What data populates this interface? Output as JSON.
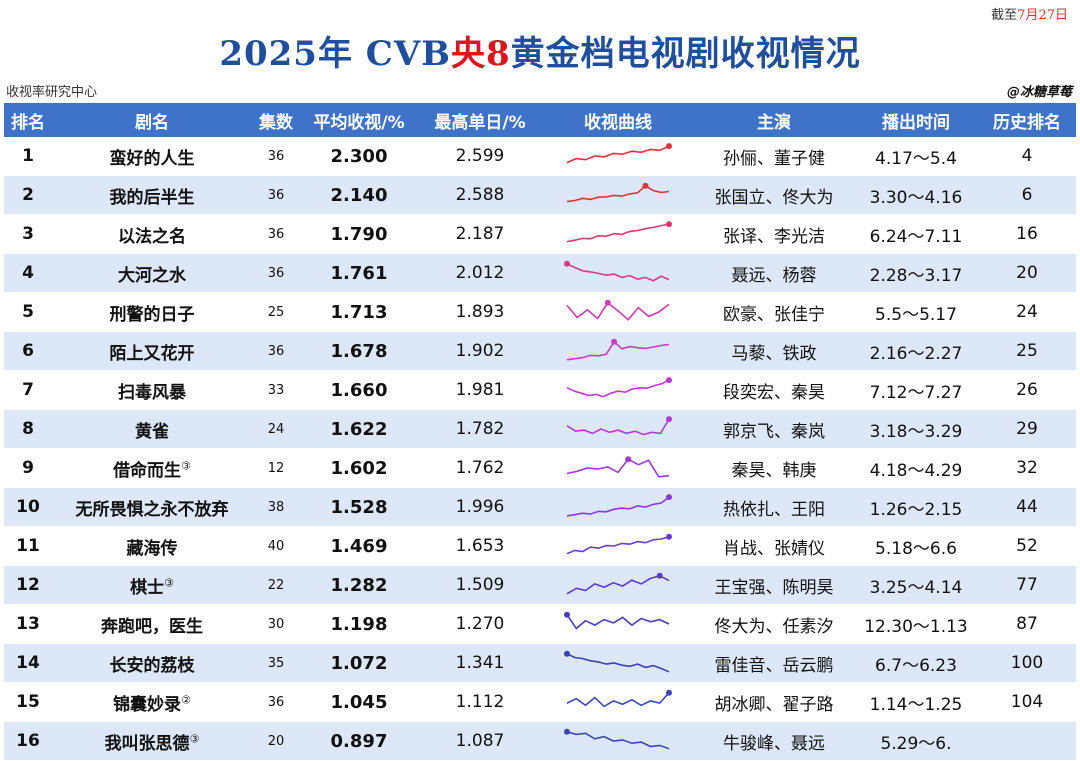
{
  "header": {
    "date_prefix": "截至",
    "date_value": "7月27日",
    "title_pre": "2025年 CVB",
    "title_hl": "央8",
    "title_post": "黄金档电视剧收视情况",
    "source": "收视率研究中心",
    "watermark": "@冰糖草莓"
  },
  "columns": [
    "排名",
    "剧名",
    "集数",
    "平均收视/%",
    "最高单日/%",
    "收视曲线",
    "主演",
    "播出时间",
    "历史排名"
  ],
  "colors": {
    "header_bg": "#3f73c9",
    "title": "#1f4f9c",
    "accent": "#e0141c",
    "row_alt": "#dce8f7"
  },
  "chart_data": {
    "type": "table",
    "title": "2025年 CVB央8黄金档电视剧收视情况",
    "rows": [
      {
        "rank": "1",
        "name": "蛮好的人生",
        "sup": "",
        "episodes": "36",
        "avg": "2.300",
        "peak": "2.599",
        "cast": "孙俪、董子健",
        "airing": "4.17～5.4",
        "history": "4",
        "curve_color": "#e0323c",
        "curve": [
          0.2,
          0.38,
          0.33,
          0.5,
          0.46,
          0.62,
          0.58,
          0.72,
          0.67,
          0.8,
          0.76,
          0.95
        ],
        "peak_idx": 11
      },
      {
        "rank": "2",
        "name": "我的后半生",
        "sup": "",
        "episodes": "36",
        "avg": "2.140",
        "peak": "2.588",
        "cast": "张国立、佟大为",
        "airing": "3.30～4.16",
        "history": "6",
        "curve_color": "#e0323c",
        "curve": [
          0.2,
          0.25,
          0.35,
          0.3,
          0.4,
          0.42,
          0.48,
          0.45,
          0.55,
          0.6,
          0.92,
          0.7,
          0.62,
          0.66
        ],
        "peak_idx": 10
      },
      {
        "rank": "3",
        "name": "以法之名",
        "sup": "",
        "episodes": "36",
        "avg": "1.790",
        "peak": "2.187",
        "cast": "张译、李光洁",
        "airing": "6.24～7.11",
        "history": "16",
        "curve_color": "#d83a6c",
        "curve": [
          0.15,
          0.22,
          0.3,
          0.28,
          0.42,
          0.4,
          0.52,
          0.48,
          0.62,
          0.66,
          0.74,
          0.8,
          0.88,
          0.95
        ],
        "peak_idx": 13
      },
      {
        "rank": "4",
        "name": "大河之水",
        "sup": "",
        "episodes": "36",
        "avg": "1.761",
        "peak": "2.012",
        "cast": "聂远、杨蓉",
        "airing": "2.28～3.17",
        "history": "20",
        "curve_color": "#d83a8a",
        "curve": [
          0.92,
          0.75,
          0.6,
          0.55,
          0.48,
          0.4,
          0.45,
          0.3,
          0.38,
          0.22,
          0.3,
          0.15,
          0.35,
          0.2
        ],
        "peak_idx": 0
      },
      {
        "rank": "5",
        "name": "刑警的日子",
        "sup": "",
        "episodes": "25",
        "avg": "1.713",
        "peak": "1.893",
        "cast": "欧豪、张佳宁",
        "airing": "5.5～5.17",
        "history": "24",
        "curve_color": "#d13ab2",
        "curve": [
          0.8,
          0.25,
          0.6,
          0.2,
          0.92,
          0.55,
          0.15,
          0.7,
          0.3,
          0.5,
          0.85
        ],
        "peak_idx": 4
      },
      {
        "rank": "6",
        "name": "陌上又花开",
        "sup": "",
        "episodes": "36",
        "avg": "1.678",
        "peak": "1.902",
        "cast": "马藜、铁政",
        "airing": "2.16～2.27",
        "history": "25",
        "curve_color": "#c83ac8",
        "curve": [
          0.1,
          0.15,
          0.2,
          0.3,
          0.28,
          0.35,
          0.92,
          0.6,
          0.7,
          0.65,
          0.62,
          0.68,
          0.75,
          0.8
        ],
        "peak_idx": 6
      },
      {
        "rank": "7",
        "name": "扫毒风暴",
        "sup": "",
        "episodes": "33",
        "avg": "1.660",
        "peak": "1.981",
        "cast": "段奕宏、秦昊",
        "airing": "7.12～7.27",
        "history": "26",
        "curve_color": "#b83ace",
        "curve": [
          0.6,
          0.45,
          0.35,
          0.25,
          0.3,
          0.2,
          0.35,
          0.45,
          0.4,
          0.55,
          0.6,
          0.58,
          0.7,
          0.78,
          0.95
        ],
        "peak_idx": 14
      },
      {
        "rank": "8",
        "name": "黄雀",
        "sup": "",
        "episodes": "24",
        "avg": "1.622",
        "peak": "1.782",
        "cast": "郭京飞、秦岚",
        "airing": "3.18～3.29",
        "history": "29",
        "curve_color": "#b43ad0",
        "curve": [
          0.65,
          0.4,
          0.45,
          0.3,
          0.5,
          0.35,
          0.45,
          0.3,
          0.4,
          0.25,
          0.35,
          0.3,
          0.95
        ],
        "peak_idx": 12
      },
      {
        "rank": "9",
        "name": "借命而生",
        "sup": "③",
        "episodes": "12",
        "avg": "1.602",
        "peak": "1.762",
        "cast": "秦昊、韩庚",
        "airing": "4.18～4.29",
        "history": "32",
        "curve_color": "#a03ad4",
        "curve": [
          0.25,
          0.35,
          0.5,
          0.45,
          0.55,
          0.3,
          0.9,
          0.65,
          0.85,
          0.1,
          0.15
        ],
        "peak_idx": 6
      },
      {
        "rank": "10",
        "name": "无所畏惧之永不放弃",
        "sup": "",
        "episodes": "38",
        "avg": "1.528",
        "peak": "1.996",
        "cast": "热依扎、王阳",
        "airing": "1.26～2.15",
        "history": "44",
        "curve_color": "#8a3ad8",
        "curve": [
          0.1,
          0.15,
          0.22,
          0.18,
          0.3,
          0.28,
          0.4,
          0.45,
          0.42,
          0.55,
          0.5,
          0.62,
          0.68,
          0.95
        ],
        "peak_idx": 13
      },
      {
        "rank": "11",
        "name": "藏海传",
        "sup": "",
        "episodes": "40",
        "avg": "1.469",
        "peak": "1.653",
        "cast": "肖战、张婧仪",
        "airing": "5.18～6.6",
        "history": "52",
        "curve_color": "#6a3ad8",
        "curve": [
          0.15,
          0.3,
          0.25,
          0.45,
          0.4,
          0.52,
          0.5,
          0.62,
          0.58,
          0.7,
          0.65,
          0.78,
          0.82,
          0.92
        ],
        "peak_idx": 13
      },
      {
        "rank": "12",
        "name": "棋士",
        "sup": "③",
        "episodes": "22",
        "avg": "1.282",
        "peak": "1.509",
        "cast": "王宝强、陈明昊",
        "airing": "3.25～4.14",
        "history": "77",
        "curve_color": "#5a3ad2",
        "curve": [
          0.1,
          0.35,
          0.25,
          0.55,
          0.4,
          0.6,
          0.45,
          0.72,
          0.55,
          0.8,
          0.92,
          0.7
        ],
        "peak_idx": 10
      },
      {
        "rank": "13",
        "name": "奔跑吧，医生",
        "sup": "",
        "episodes": "30",
        "avg": "1.198",
        "peak": "1.270",
        "cast": "佟大为、任素汐",
        "airing": "12.30～1.13",
        "history": "87",
        "curve_color": "#4a3ac8",
        "curve": [
          0.92,
          0.3,
          0.65,
          0.45,
          0.7,
          0.55,
          0.8,
          0.45,
          0.75,
          0.6,
          0.7,
          0.5
        ],
        "peak_idx": 0
      },
      {
        "rank": "14",
        "name": "长安的荔枝",
        "sup": "",
        "episodes": "35",
        "avg": "1.072",
        "peak": "1.341",
        "cast": "雷佳音、岳云鹏",
        "airing": "6.7～6.23",
        "history": "100",
        "curve_color": "#3a40b8",
        "curve": [
          0.92,
          0.75,
          0.7,
          0.6,
          0.55,
          0.45,
          0.5,
          0.4,
          0.35,
          0.45,
          0.3,
          0.38,
          0.25,
          0.1
        ],
        "peak_idx": 0
      },
      {
        "rank": "15",
        "name": "锦囊妙录",
        "sup": "②",
        "episodes": "36",
        "avg": "1.045",
        "peak": "1.112",
        "cast": "胡冰卿、翟子路",
        "airing": "1.14～1.25",
        "history": "104",
        "curve_color": "#3a48b8",
        "curve": [
          0.45,
          0.65,
          0.35,
          0.7,
          0.3,
          0.55,
          0.4,
          0.6,
          0.35,
          0.55,
          0.45,
          0.92
        ],
        "peak_idx": 11
      },
      {
        "rank": "16",
        "name": "我叫张思德",
        "sup": "③",
        "episodes": "20",
        "avg": "0.897",
        "peak": "1.087",
        "cast": "牛骏峰、聂远",
        "airing": "5.29～6.",
        "history": "",
        "curve_color": "#3a48b0",
        "curve": [
          0.92,
          0.8,
          0.85,
          0.6,
          0.7,
          0.5,
          0.55,
          0.4,
          0.45,
          0.25,
          0.3,
          0.15
        ],
        "peak_idx": 0
      }
    ]
  }
}
